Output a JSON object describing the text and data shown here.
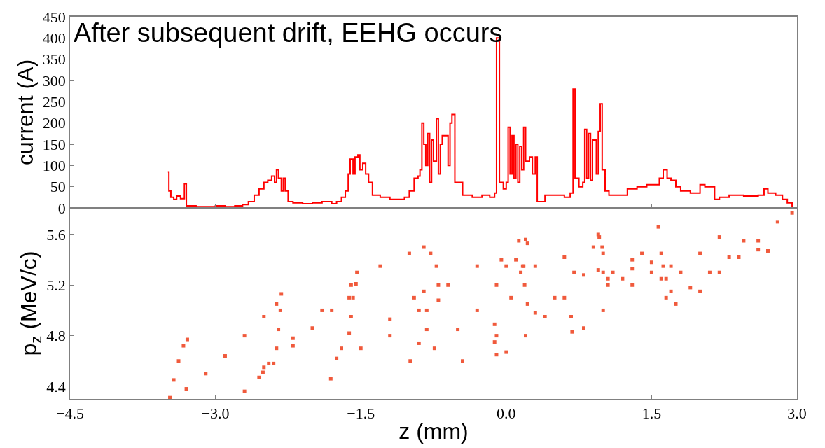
{
  "chart_data": [
    {
      "type": "step",
      "title": "After subsequent drift, EEHG occurs",
      "ylabel": "current (A)",
      "xlim": [
        -4.5,
        3.0
      ],
      "xticks": [
        -4.5,
        -3.0,
        -1.5,
        0.0,
        1.5,
        3.0
      ],
      "ylim": [
        0,
        450
      ],
      "yticks": [
        0,
        50,
        100,
        150,
        200,
        250,
        300,
        350,
        400,
        450
      ],
      "tick_labels": "y",
      "grid": false,
      "marker": "none",
      "line_style": "solid",
      "series": [
        {
          "color": "#ff0000",
          "x": [
            -3.49,
            -3.48,
            -3.46,
            -3.43,
            -3.4,
            -3.36,
            -3.32,
            -3.3,
            -3.2,
            -3.1,
            -3.0,
            -2.9,
            -2.8,
            -2.72,
            -2.66,
            -2.6,
            -2.55,
            -2.5,
            -2.46,
            -2.42,
            -2.39,
            -2.37,
            -2.35,
            -2.32,
            -2.3,
            -2.28,
            -2.25,
            -2.2,
            -2.1,
            -2.0,
            -1.9,
            -1.8,
            -1.75,
            -1.7,
            -1.66,
            -1.63,
            -1.61,
            -1.58,
            -1.56,
            -1.53,
            -1.51,
            -1.48,
            -1.45,
            -1.42,
            -1.38,
            -1.3,
            -1.2,
            -1.1,
            -1.05,
            -1.0,
            -0.95,
            -0.91,
            -0.89,
            -0.87,
            -0.85,
            -0.83,
            -0.81,
            -0.79,
            -0.77,
            -0.75,
            -0.72,
            -0.7,
            -0.68,
            -0.66,
            -0.6,
            -0.58,
            -0.56,
            -0.53,
            -0.45,
            -0.35,
            -0.25,
            -0.17,
            -0.12,
            -0.1,
            -0.07,
            -0.03,
            0.0,
            0.02,
            0.04,
            0.06,
            0.08,
            0.1,
            0.12,
            0.14,
            0.16,
            0.18,
            0.2,
            0.24,
            0.27,
            0.3,
            0.32,
            0.4,
            0.5,
            0.6,
            0.66,
            0.69,
            0.71,
            0.75,
            0.79,
            0.81,
            0.83,
            0.85,
            0.87,
            0.89,
            0.93,
            0.95,
            0.97,
            0.99,
            1.02,
            1.06,
            1.15,
            1.25,
            1.35,
            1.45,
            1.52,
            1.58,
            1.62,
            1.66,
            1.7,
            1.75,
            1.8,
            1.9,
            2.0,
            2.05,
            2.15,
            2.2,
            2.3,
            2.45,
            2.6,
            2.66,
            2.7,
            2.78,
            2.85,
            2.9,
            2.95
          ],
          "values": [
            85,
            40,
            25,
            20,
            28,
            22,
            57,
            5,
            3,
            3,
            5,
            3,
            5,
            8,
            15,
            30,
            45,
            60,
            65,
            75,
            60,
            90,
            70,
            40,
            70,
            40,
            15,
            12,
            10,
            12,
            15,
            10,
            15,
            25,
            40,
            80,
            115,
            80,
            120,
            125,
            90,
            105,
            80,
            60,
            30,
            25,
            20,
            20,
            25,
            40,
            70,
            75,
            90,
            200,
            150,
            100,
            175,
            60,
            160,
            110,
            210,
            80,
            150,
            170,
            100,
            200,
            220,
            60,
            30,
            25,
            30,
            25,
            35,
            400,
            60,
            45,
            60,
            190,
            80,
            170,
            70,
            150,
            60,
            145,
            90,
            190,
            110,
            120,
            80,
            120,
            15,
            30,
            30,
            25,
            35,
            280,
            70,
            50,
            60,
            185,
            70,
            175,
            65,
            160,
            80,
            180,
            245,
            90,
            40,
            30,
            30,
            45,
            50,
            55,
            55,
            70,
            90,
            70,
            65,
            50,
            40,
            35,
            55,
            50,
            20,
            25,
            30,
            28,
            30,
            45,
            35,
            30,
            20,
            12,
            0
          ]
        }
      ]
    },
    {
      "type": "scatter",
      "xlabel": "z (mm)",
      "ylabel": "p$_{z}$ (MeV/c)",
      "marker": "square",
      "grid": false,
      "xlim": [
        -4.5,
        3.0
      ],
      "xticks": [
        {
          "value": -4.5,
          "label": "−4.5"
        },
        {
          "value": -3.0,
          "label": "−3.0"
        },
        {
          "value": -1.5,
          "label": "−1.5"
        },
        {
          "value": 0.0,
          "label": "0.0"
        },
        1.5,
        {
          "value": 3.0,
          "label": "3.0"
        }
      ],
      "ylim": [
        4.3,
        5.81
      ],
      "yticks": [
        4.4,
        4.8,
        5.2,
        5.6
      ],
      "series": [
        {
          "color": "#f05a3c",
          "x": [
            -3.47,
            -3.43,
            -3.38,
            -3.33,
            -3.29,
            -3.3,
            -3.1,
            -2.9,
            -2.7,
            -2.5,
            -2.37,
            -2.32,
            -2.33,
            -2.35,
            -2.37,
            -2.45,
            -2.51,
            -2.7,
            -2.55,
            -2.4,
            -2.2,
            -2.0,
            -1.8,
            -1.62,
            -1.55,
            -1.54,
            -1.58,
            -1.6,
            -1.62,
            -1.7,
            -1.75,
            -1.81,
            -1.5,
            -1.2,
            -0.95,
            -0.85,
            -0.82,
            -0.82,
            -0.9,
            -2.5,
            -2.2,
            -1.9,
            -1.6,
            -1.3,
            -1.0,
            -0.85,
            -0.78,
            -0.72,
            -0.7,
            -0.7,
            -0.99,
            -0.74,
            -0.5,
            -0.3,
            -0.1,
            0.0,
            0.13,
            0.2,
            0.22,
            -1.2,
            -0.9,
            -0.6,
            -0.3,
            -0.05,
            0.1,
            0.17,
            0.19,
            0.22,
            0.3,
            0.5,
            0.7,
            0.9,
            0.96,
            0.99,
            1.0,
            1.05,
            1.2,
            1.4,
            1.57,
            -0.12,
            -0.12,
            -0.1,
            0.0,
            0.2,
            0.4,
            0.6,
            0.8,
            0.95,
            1.1,
            1.3,
            1.5,
            1.62,
            1.65,
            1.7,
            1.9,
            2.1,
            2.3,
            0.67,
            0.68,
            0.8,
            1.0,
            1.3,
            1.5,
            1.6,
            1.65,
            1.75,
            2.0,
            2.2,
            2.4,
            2.6,
            2.7,
            -0.45,
            -0.1,
            0.05,
            0.15,
            0.18,
            0.3,
            0.6,
            0.95,
            1.0,
            1.05,
            1.3,
            1.6,
            1.7,
            1.8,
            2.0,
            2.2,
            2.45,
            2.6,
            2.8,
            2.95
          ],
          "values": [
            4.31,
            4.45,
            4.6,
            4.72,
            4.77,
            4.38,
            4.5,
            4.64,
            4.8,
            4.95,
            5.05,
            5.13,
            5.0,
            4.85,
            4.7,
            4.58,
            4.51,
            4.36,
            4.47,
            4.58,
            4.72,
            4.86,
            5.0,
            5.1,
            5.21,
            5.3,
            5.1,
            4.95,
            4.82,
            4.7,
            4.62,
            4.46,
            4.7,
            4.93,
            5.1,
            5.15,
            5.0,
            4.85,
            4.74,
            4.55,
            4.78,
            5.0,
            5.2,
            5.35,
            5.45,
            5.5,
            5.45,
            5.35,
            5.2,
            5.08,
            4.6,
            4.7,
            4.85,
            5.0,
            5.2,
            5.35,
            5.55,
            5.56,
            5.53,
            4.8,
            5.0,
            5.2,
            5.35,
            5.4,
            5.4,
            5.35,
            5.2,
            5.05,
            4.98,
            5.1,
            5.3,
            5.5,
            5.58,
            5.5,
            5.3,
            5.2,
            5.25,
            5.45,
            5.66,
            4.89,
            4.75,
            4.65,
            4.67,
            4.8,
            4.95,
            5.1,
            5.28,
            5.32,
            5.3,
            5.33,
            5.38,
            5.35,
            5.25,
            5.15,
            5.18,
            5.3,
            5.42,
            4.95,
            4.83,
            4.86,
            5.0,
            5.2,
            5.3,
            5.25,
            5.1,
            5.05,
            5.15,
            5.3,
            5.42,
            5.48,
            5.47,
            4.6,
            4.8,
            5.1,
            5.3,
            5.35,
            5.35,
            5.42,
            5.6,
            5.45,
            5.25,
            5.4,
            5.45,
            5.35,
            5.3,
            5.45,
            5.58,
            5.55,
            5.55,
            5.7,
            5.77
          ]
        }
      ]
    }
  ]
}
